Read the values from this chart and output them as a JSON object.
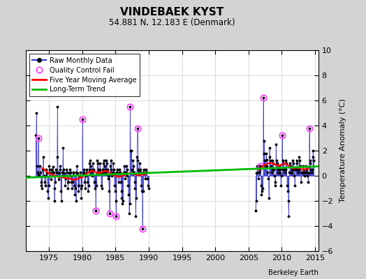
{
  "title": "VINDEBAEK KYST",
  "subtitle": "54.881 N, 12.183 E (Denmark)",
  "ylabel": "Temperature Anomaly (°C)",
  "attribution": "Berkeley Earth",
  "xlim": [
    1971.5,
    2015.5
  ],
  "ylim": [
    -6,
    10
  ],
  "yticks": [
    -6,
    -4,
    -2,
    0,
    2,
    4,
    6,
    8,
    10
  ],
  "xticks": [
    1975,
    1980,
    1985,
    1990,
    1995,
    2000,
    2005,
    2010,
    2015
  ],
  "bg_color": "#d3d3d3",
  "plot_bg_color": "#ffffff",
  "raw_color": "#3333cc",
  "raw_dot_color": "#000000",
  "qc_fail_color": "#ff44ff",
  "moving_avg_color": "#ff0000",
  "trend_color": "#00bb00",
  "gap_start": 1990.0,
  "gap_end": 2006.0,
  "raw_monthly_data": [
    [
      1973.042,
      3.2
    ],
    [
      1973.125,
      5.0
    ],
    [
      1973.208,
      0.8
    ],
    [
      1973.292,
      0.3
    ],
    [
      1973.375,
      3.0
    ],
    [
      1973.458,
      0.1
    ],
    [
      1973.542,
      0.0
    ],
    [
      1973.625,
      0.8
    ],
    [
      1973.708,
      0.3
    ],
    [
      1973.792,
      -0.5
    ],
    [
      1973.875,
      -0.8
    ],
    [
      1973.958,
      -1.0
    ],
    [
      1974.042,
      0.5
    ],
    [
      1974.125,
      1.5
    ],
    [
      1974.208,
      0.5
    ],
    [
      1974.292,
      0.0
    ],
    [
      1974.375,
      -0.5
    ],
    [
      1974.458,
      -0.8
    ],
    [
      1974.542,
      0.0
    ],
    [
      1974.625,
      0.5
    ],
    [
      1974.708,
      0.2
    ],
    [
      1974.792,
      -1.2
    ],
    [
      1974.875,
      -1.8
    ],
    [
      1974.958,
      -0.8
    ],
    [
      1975.042,
      0.8
    ],
    [
      1975.125,
      0.5
    ],
    [
      1975.208,
      0.2
    ],
    [
      1975.292,
      -0.3
    ],
    [
      1975.375,
      0.5
    ],
    [
      1975.458,
      0.5
    ],
    [
      1975.542,
      0.3
    ],
    [
      1975.625,
      0.7
    ],
    [
      1975.708,
      0.3
    ],
    [
      1975.792,
      -2.0
    ],
    [
      1975.875,
      -1.0
    ],
    [
      1975.958,
      -0.5
    ],
    [
      1976.042,
      0.5
    ],
    [
      1976.125,
      0.3
    ],
    [
      1976.208,
      1.5
    ],
    [
      1976.292,
      5.5
    ],
    [
      1976.375,
      0.3
    ],
    [
      1976.458,
      -0.3
    ],
    [
      1976.542,
      0.2
    ],
    [
      1976.625,
      0.8
    ],
    [
      1976.708,
      0.5
    ],
    [
      1976.792,
      -1.2
    ],
    [
      1976.875,
      -2.0
    ],
    [
      1976.958,
      0.0
    ],
    [
      1977.042,
      0.3
    ],
    [
      1977.125,
      2.2
    ],
    [
      1977.208,
      0.5
    ],
    [
      1977.292,
      0.2
    ],
    [
      1977.375,
      0.0
    ],
    [
      1977.458,
      -0.8
    ],
    [
      1977.542,
      -0.2
    ],
    [
      1977.625,
      0.5
    ],
    [
      1977.708,
      0.3
    ],
    [
      1977.792,
      -0.5
    ],
    [
      1977.875,
      -1.0
    ],
    [
      1977.958,
      -0.5
    ],
    [
      1978.042,
      0.2
    ],
    [
      1978.125,
      0.5
    ],
    [
      1978.208,
      0.3
    ],
    [
      1978.292,
      0.0
    ],
    [
      1978.375,
      -0.5
    ],
    [
      1978.458,
      -1.0
    ],
    [
      1978.542,
      -0.5
    ],
    [
      1978.625,
      0.3
    ],
    [
      1978.708,
      0.2
    ],
    [
      1978.792,
      -0.8
    ],
    [
      1978.875,
      -1.5
    ],
    [
      1978.958,
      -1.0
    ],
    [
      1979.042,
      -2.0
    ],
    [
      1979.125,
      0.3
    ],
    [
      1979.208,
      0.8
    ],
    [
      1979.292,
      0.2
    ],
    [
      1979.375,
      -0.8
    ],
    [
      1979.458,
      -1.2
    ],
    [
      1979.542,
      -0.8
    ],
    [
      1979.625,
      0.0
    ],
    [
      1979.708,
      0.3
    ],
    [
      1979.792,
      -1.0
    ],
    [
      1979.875,
      -1.8
    ],
    [
      1979.958,
      -0.8
    ],
    [
      1980.042,
      4.5
    ],
    [
      1980.125,
      0.2
    ],
    [
      1980.208,
      0.5
    ],
    [
      1980.292,
      0.3
    ],
    [
      1980.375,
      -0.5
    ],
    [
      1980.458,
      -1.0
    ],
    [
      1980.542,
      0.0
    ],
    [
      1980.625,
      0.5
    ],
    [
      1980.708,
      0.3
    ],
    [
      1980.792,
      -0.5
    ],
    [
      1980.875,
      -1.2
    ],
    [
      1980.958,
      -0.8
    ],
    [
      1981.042,
      0.5
    ],
    [
      1981.125,
      1.0
    ],
    [
      1981.208,
      1.2
    ],
    [
      1981.292,
      0.8
    ],
    [
      1981.375,
      0.3
    ],
    [
      1981.458,
      0.0
    ],
    [
      1981.542,
      0.5
    ],
    [
      1981.625,
      1.0
    ],
    [
      1981.708,
      0.5
    ],
    [
      1981.792,
      -0.5
    ],
    [
      1981.875,
      -1.0
    ],
    [
      1981.958,
      -0.5
    ],
    [
      1982.042,
      -2.8
    ],
    [
      1982.125,
      -0.8
    ],
    [
      1982.208,
      0.2
    ],
    [
      1982.292,
      1.2
    ],
    [
      1982.375,
      1.0
    ],
    [
      1982.458,
      0.5
    ],
    [
      1982.542,
      0.3
    ],
    [
      1982.625,
      1.0
    ],
    [
      1982.708,
      0.5
    ],
    [
      1982.792,
      0.3
    ],
    [
      1982.875,
      -0.8
    ],
    [
      1982.958,
      -1.0
    ],
    [
      1983.042,
      0.3
    ],
    [
      1983.125,
      0.5
    ],
    [
      1983.208,
      1.0
    ],
    [
      1983.292,
      1.2
    ],
    [
      1983.375,
      0.8
    ],
    [
      1983.458,
      0.3
    ],
    [
      1983.542,
      0.5
    ],
    [
      1983.625,
      1.2
    ],
    [
      1983.708,
      1.0
    ],
    [
      1983.792,
      0.5
    ],
    [
      1983.875,
      0.0
    ],
    [
      1983.958,
      -0.2
    ],
    [
      1984.042,
      -1.2
    ],
    [
      1984.125,
      -3.0
    ],
    [
      1984.208,
      0.8
    ],
    [
      1984.292,
      1.2
    ],
    [
      1984.375,
      0.5
    ],
    [
      1984.458,
      0.0
    ],
    [
      1984.542,
      0.3
    ],
    [
      1984.625,
      1.0
    ],
    [
      1984.708,
      0.5
    ],
    [
      1984.792,
      0.2
    ],
    [
      1984.875,
      -0.8
    ],
    [
      1984.958,
      -1.2
    ],
    [
      1985.042,
      -2.0
    ],
    [
      1985.125,
      -3.2
    ],
    [
      1985.208,
      0.3
    ],
    [
      1985.292,
      0.5
    ],
    [
      1985.375,
      0.2
    ],
    [
      1985.458,
      -0.5
    ],
    [
      1985.542,
      0.2
    ],
    [
      1985.625,
      0.5
    ],
    [
      1985.708,
      0.3
    ],
    [
      1985.792,
      -0.5
    ],
    [
      1985.875,
      -1.2
    ],
    [
      1985.958,
      -1.8
    ],
    [
      1986.042,
      -2.2
    ],
    [
      1986.125,
      -2.0
    ],
    [
      1986.208,
      0.2
    ],
    [
      1986.292,
      0.8
    ],
    [
      1986.375,
      0.3
    ],
    [
      1986.458,
      -0.2
    ],
    [
      1986.542,
      0.3
    ],
    [
      1986.625,
      0.8
    ],
    [
      1986.708,
      0.5
    ],
    [
      1986.792,
      0.0
    ],
    [
      1986.875,
      -0.8
    ],
    [
      1986.958,
      -1.5
    ],
    [
      1987.042,
      -3.0
    ],
    [
      1987.125,
      -2.2
    ],
    [
      1987.208,
      5.5
    ],
    [
      1987.292,
      2.0
    ],
    [
      1987.375,
      2.0
    ],
    [
      1987.458,
      0.5
    ],
    [
      1987.542,
      0.3
    ],
    [
      1987.625,
      1.2
    ],
    [
      1987.708,
      0.8
    ],
    [
      1987.792,
      0.3
    ],
    [
      1987.875,
      -0.5
    ],
    [
      1987.958,
      -1.0
    ],
    [
      1988.042,
      -3.2
    ],
    [
      1988.125,
      -1.8
    ],
    [
      1988.208,
      1.5
    ],
    [
      1988.292,
      3.8
    ],
    [
      1988.375,
      1.2
    ],
    [
      1988.458,
      0.5
    ],
    [
      1988.542,
      0.3
    ],
    [
      1988.625,
      1.0
    ],
    [
      1988.708,
      0.5
    ],
    [
      1988.792,
      0.3
    ],
    [
      1988.875,
      -0.8
    ],
    [
      1988.958,
      -1.2
    ],
    [
      1989.042,
      -4.2
    ],
    [
      1989.125,
      -1.2
    ],
    [
      1989.208,
      0.3
    ],
    [
      1989.292,
      0.5
    ],
    [
      1989.375,
      0.2
    ],
    [
      1989.458,
      -0.2
    ],
    [
      1989.542,
      0.3
    ],
    [
      1989.625,
      0.5
    ],
    [
      1989.708,
      0.3
    ],
    [
      1989.792,
      -0.2
    ],
    [
      1989.875,
      -0.8
    ],
    [
      1989.958,
      -1.0
    ],
    [
      2006.042,
      -2.8
    ],
    [
      2006.125,
      -2.0
    ],
    [
      2006.208,
      0.2
    ],
    [
      2006.292,
      0.8
    ],
    [
      2006.375,
      0.3
    ],
    [
      2006.458,
      -0.2
    ],
    [
      2006.542,
      0.3
    ],
    [
      2006.625,
      0.8
    ],
    [
      2006.708,
      0.5
    ],
    [
      2006.792,
      0.8
    ],
    [
      2006.875,
      -0.8
    ],
    [
      2006.958,
      -1.5
    ],
    [
      2007.042,
      -1.2
    ],
    [
      2007.125,
      -1.0
    ],
    [
      2007.208,
      6.2
    ],
    [
      2007.292,
      2.8
    ],
    [
      2007.375,
      1.8
    ],
    [
      2007.458,
      1.2
    ],
    [
      2007.542,
      0.8
    ],
    [
      2007.625,
      1.8
    ],
    [
      2007.708,
      1.3
    ],
    [
      2007.792,
      0.8
    ],
    [
      2007.875,
      0.3
    ],
    [
      2007.958,
      -0.2
    ],
    [
      2008.042,
      -1.8
    ],
    [
      2008.125,
      2.2
    ],
    [
      2008.208,
      1.5
    ],
    [
      2008.292,
      1.2
    ],
    [
      2008.375,
      0.8
    ],
    [
      2008.458,
      0.3
    ],
    [
      2008.542,
      0.5
    ],
    [
      2008.625,
      1.2
    ],
    [
      2008.708,
      1.0
    ],
    [
      2008.792,
      0.5
    ],
    [
      2008.875,
      0.0
    ],
    [
      2008.958,
      -0.5
    ],
    [
      2009.042,
      -0.8
    ],
    [
      2009.125,
      2.5
    ],
    [
      2009.208,
      1.2
    ],
    [
      2009.292,
      1.0
    ],
    [
      2009.375,
      0.5
    ],
    [
      2009.458,
      0.2
    ],
    [
      2009.542,
      0.3
    ],
    [
      2009.625,
      0.8
    ],
    [
      2009.708,
      0.5
    ],
    [
      2009.792,
      0.2
    ],
    [
      2009.875,
      -0.8
    ],
    [
      2009.958,
      0.0
    ],
    [
      2010.042,
      3.2
    ],
    [
      2010.125,
      0.5
    ],
    [
      2010.208,
      1.2
    ],
    [
      2010.292,
      1.0
    ],
    [
      2010.375,
      0.5
    ],
    [
      2010.458,
      0.3
    ],
    [
      2010.542,
      0.5
    ],
    [
      2010.625,
      1.2
    ],
    [
      2010.708,
      1.0
    ],
    [
      2010.792,
      -0.8
    ],
    [
      2010.875,
      -1.2
    ],
    [
      2010.958,
      -2.0
    ],
    [
      2011.042,
      -3.2
    ],
    [
      2011.125,
      0.3
    ],
    [
      2011.208,
      1.0
    ],
    [
      2011.292,
      0.8
    ],
    [
      2011.375,
      0.3
    ],
    [
      2011.458,
      0.2
    ],
    [
      2011.542,
      0.5
    ],
    [
      2011.625,
      1.2
    ],
    [
      2011.708,
      1.0
    ],
    [
      2011.792,
      0.5
    ],
    [
      2011.875,
      0.0
    ],
    [
      2011.958,
      -0.8
    ],
    [
      2012.042,
      0.5
    ],
    [
      2012.125,
      0.5
    ],
    [
      2012.208,
      1.2
    ],
    [
      2012.292,
      1.0
    ],
    [
      2012.375,
      0.5
    ],
    [
      2012.458,
      0.3
    ],
    [
      2012.542,
      0.5
    ],
    [
      2012.625,
      1.5
    ],
    [
      2012.708,
      1.2
    ],
    [
      2012.792,
      0.8
    ],
    [
      2012.875,
      -0.5
    ],
    [
      2012.958,
      0.3
    ],
    [
      2013.042,
      0.3
    ],
    [
      2013.125,
      0.2
    ],
    [
      2013.208,
      0.8
    ],
    [
      2013.292,
      0.5
    ],
    [
      2013.375,
      0.3
    ],
    [
      2013.458,
      0.0
    ],
    [
      2013.542,
      0.3
    ],
    [
      2013.625,
      0.8
    ],
    [
      2013.708,
      0.5
    ],
    [
      2013.792,
      0.3
    ],
    [
      2013.875,
      0.0
    ],
    [
      2013.958,
      -0.5
    ],
    [
      2014.042,
      0.2
    ],
    [
      2014.125,
      3.8
    ],
    [
      2014.208,
      1.2
    ],
    [
      2014.292,
      1.0
    ],
    [
      2014.375,
      0.5
    ],
    [
      2014.458,
      0.3
    ],
    [
      2014.542,
      0.5
    ],
    [
      2014.625,
      1.5
    ],
    [
      2014.708,
      2.0
    ],
    [
      2014.792,
      1.2
    ]
  ],
  "qc_fail_points": [
    [
      1973.375,
      3.0
    ],
    [
      1980.042,
      4.5
    ],
    [
      1982.042,
      -2.8
    ],
    [
      1984.125,
      -3.0
    ],
    [
      1985.125,
      -3.2
    ],
    [
      1987.208,
      5.5
    ],
    [
      1988.292,
      3.8
    ],
    [
      1989.042,
      -4.2
    ],
    [
      2006.792,
      0.8
    ],
    [
      2007.208,
      6.2
    ],
    [
      2010.042,
      3.2
    ],
    [
      2014.125,
      3.8
    ]
  ],
  "moving_avg_data": [
    [
      1974.0,
      0.6
    ],
    [
      1974.5,
      0.4
    ],
    [
      1975.0,
      0.2
    ],
    [
      1975.5,
      0.1
    ],
    [
      1976.0,
      0.0
    ],
    [
      1976.5,
      -0.1
    ],
    [
      1977.0,
      -0.1
    ],
    [
      1977.5,
      -0.2
    ],
    [
      1978.0,
      -0.2
    ],
    [
      1978.5,
      -0.3
    ],
    [
      1979.0,
      -0.3
    ],
    [
      1979.5,
      -0.2
    ],
    [
      1980.0,
      -0.1
    ],
    [
      1980.5,
      0.1
    ],
    [
      1981.0,
      0.3
    ],
    [
      1981.5,
      0.4
    ],
    [
      1982.0,
      0.3
    ],
    [
      1982.5,
      0.2
    ],
    [
      1983.0,
      0.3
    ],
    [
      1983.5,
      0.4
    ],
    [
      1984.0,
      0.3
    ],
    [
      1984.5,
      0.1
    ],
    [
      1985.0,
      0.0
    ],
    [
      1985.5,
      -0.1
    ],
    [
      1986.0,
      0.0
    ],
    [
      1986.5,
      0.1
    ],
    [
      1987.0,
      0.2
    ],
    [
      1987.5,
      0.2
    ],
    [
      1988.0,
      0.1
    ],
    [
      1988.5,
      0.0
    ],
    [
      1989.0,
      0.1
    ],
    [
      1989.5,
      0.1
    ],
    [
      2006.5,
      0.5
    ],
    [
      2007.0,
      0.7
    ],
    [
      2007.5,
      0.9
    ],
    [
      2008.0,
      1.0
    ],
    [
      2008.5,
      1.0
    ],
    [
      2009.0,
      0.9
    ],
    [
      2009.5,
      0.8
    ],
    [
      2010.0,
      0.9
    ],
    [
      2010.5,
      1.0
    ],
    [
      2011.0,
      0.8
    ],
    [
      2011.5,
      0.6
    ],
    [
      2012.0,
      0.6
    ],
    [
      2012.5,
      0.7
    ],
    [
      2013.0,
      0.5
    ],
    [
      2013.5,
      0.5
    ],
    [
      2014.0,
      0.6
    ]
  ],
  "trend_x": [
    1971.5,
    2015.5
  ],
  "trend_y": [
    -0.15,
    0.75
  ]
}
